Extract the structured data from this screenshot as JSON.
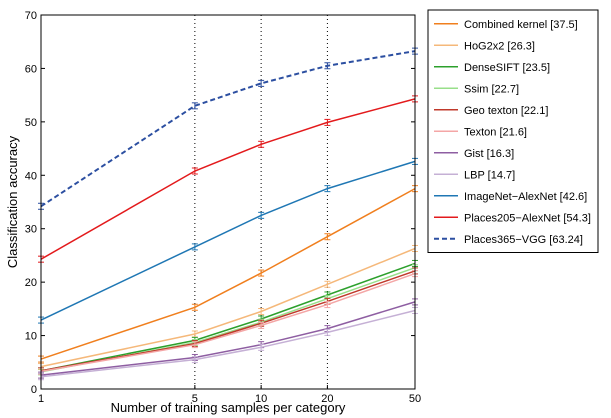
{
  "chart_data": {
    "type": "line",
    "xlabel": "Number of training samples per category",
    "ylabel": "Classification accuracy",
    "x": [
      1,
      5,
      10,
      20,
      50
    ],
    "x_tick_labels": [
      "1",
      "5",
      "10",
      "20",
      "50"
    ],
    "x_scale": "log",
    "y_ticks": [
      0,
      10,
      20,
      30,
      40,
      50,
      60,
      70
    ],
    "y_tick_labels": [
      "0",
      "10",
      "20",
      "30",
      "40",
      "50",
      "60",
      "70"
    ],
    "ylim": [
      0,
      70
    ],
    "grid": "dotted vertical at x ticks",
    "legend_position": "right, outside plot",
    "series": [
      {
        "name": "Combined kernel [37.5]",
        "color": "#f07f1e",
        "style": "solid",
        "values": [
          5.6,
          15.3,
          21.7,
          28.5,
          37.5
        ]
      },
      {
        "name": "HoG2x2 [26.3]",
        "color": "#f5b87a",
        "style": "solid",
        "values": [
          4.2,
          10.3,
          14.5,
          19.6,
          26.3
        ]
      },
      {
        "name": "DenseSIFT [23.5]",
        "color": "#2ca02c",
        "style": "solid",
        "values": [
          3.4,
          9.1,
          13.1,
          17.6,
          23.5
        ]
      },
      {
        "name": "Ssim [22.7]",
        "color": "#98df8a",
        "style": "solid",
        "values": [
          3.2,
          8.7,
          12.5,
          16.9,
          22.7
        ]
      },
      {
        "name": "Geo texton [22.1]",
        "color": "#c0392b",
        "style": "solid",
        "values": [
          3.4,
          8.5,
          12.3,
          16.4,
          22.1
        ]
      },
      {
        "name": "Texton [21.6]",
        "color": "#f4a6a6",
        "style": "solid",
        "values": [
          3.3,
          8.3,
          11.9,
          15.8,
          21.6
        ]
      },
      {
        "name": "Gist [16.3]",
        "color": "#8e5ea2",
        "style": "solid",
        "values": [
          2.6,
          5.9,
          8.3,
          11.3,
          16.3
        ]
      },
      {
        "name": "LBP [14.7]",
        "color": "#c5b0d5",
        "style": "solid",
        "values": [
          2.3,
          5.5,
          7.8,
          10.6,
          14.7
        ]
      },
      {
        "name": "ImageNet−AlexNet [42.6]",
        "color": "#1f77b4",
        "style": "solid",
        "values": [
          12.9,
          26.6,
          32.5,
          37.5,
          42.6
        ]
      },
      {
        "name": "Places205−AlexNet [54.3]",
        "color": "#e31a1c",
        "style": "solid",
        "values": [
          24.3,
          40.8,
          45.8,
          49.9,
          54.3
        ]
      },
      {
        "name": "Places365−VGG [63.24]",
        "color": "#2c4fa1",
        "style": "dashed",
        "values": [
          34.2,
          53.0,
          57.2,
          60.5,
          63.24
        ]
      }
    ]
  }
}
